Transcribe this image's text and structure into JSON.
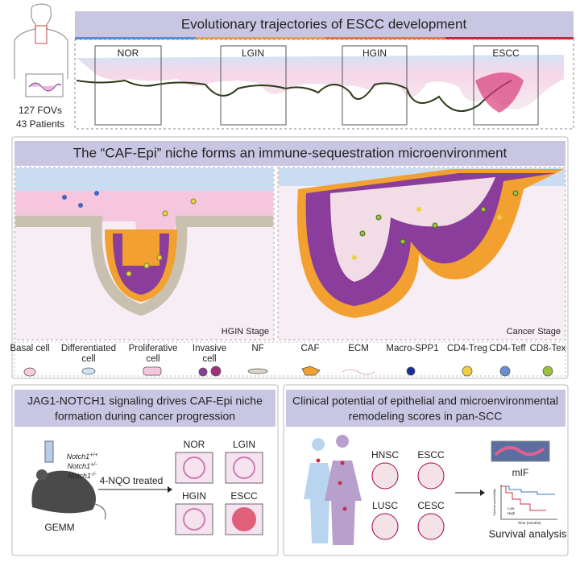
{
  "overview": {
    "fovs": "127 FOVs",
    "patients": "43 Patients",
    "title": "Evolutionary trajectories of ESCC development",
    "stages": [
      "NOR",
      "LGIN",
      "HGIN",
      "ESCC"
    ]
  },
  "niche": {
    "title": "The “CAF-Epi” niche forms an immune-sequestration microenvironment",
    "left_caption": "HGIN Stage",
    "right_caption": "Cancer Stage",
    "legend": [
      "Basal cell",
      "Differentiated cell",
      "Proliferative cell",
      "Invasive cell",
      "NF",
      "CAF",
      "ECM",
      "Macro-SPP1",
      "CD4-Treg",
      "CD4-Teff",
      "CD8-Tex"
    ]
  },
  "notch": {
    "title_lines": [
      "JAG1-NOTCH1 signaling drives CAF-Epi niche",
      "formation during cancer progression"
    ],
    "genotypes": [
      {
        "gene": "Notch1",
        "allele": "+/+"
      },
      {
        "gene": "Notch1",
        "allele": "+/-"
      },
      {
        "gene": "Notch1",
        "allele": "-/-"
      }
    ],
    "treatment": "4-NQO treated",
    "model": "GEMM",
    "stages": [
      "NOR",
      "LGIN",
      "HGIN",
      "ESCC"
    ]
  },
  "clinical": {
    "title_lines": [
      "Clinical potential of epithelial and microenvironmental",
      "remodeling scores in pan-SCC"
    ],
    "cancers": [
      "HNSC",
      "ESCC",
      "LUSC",
      "CESC"
    ],
    "mif": "mIF",
    "survival": "Survival analysis",
    "km": {
      "y_label": "Survival probability",
      "x_label": "Time (months)",
      "groups": [
        "Low",
        "High"
      ]
    }
  }
}
